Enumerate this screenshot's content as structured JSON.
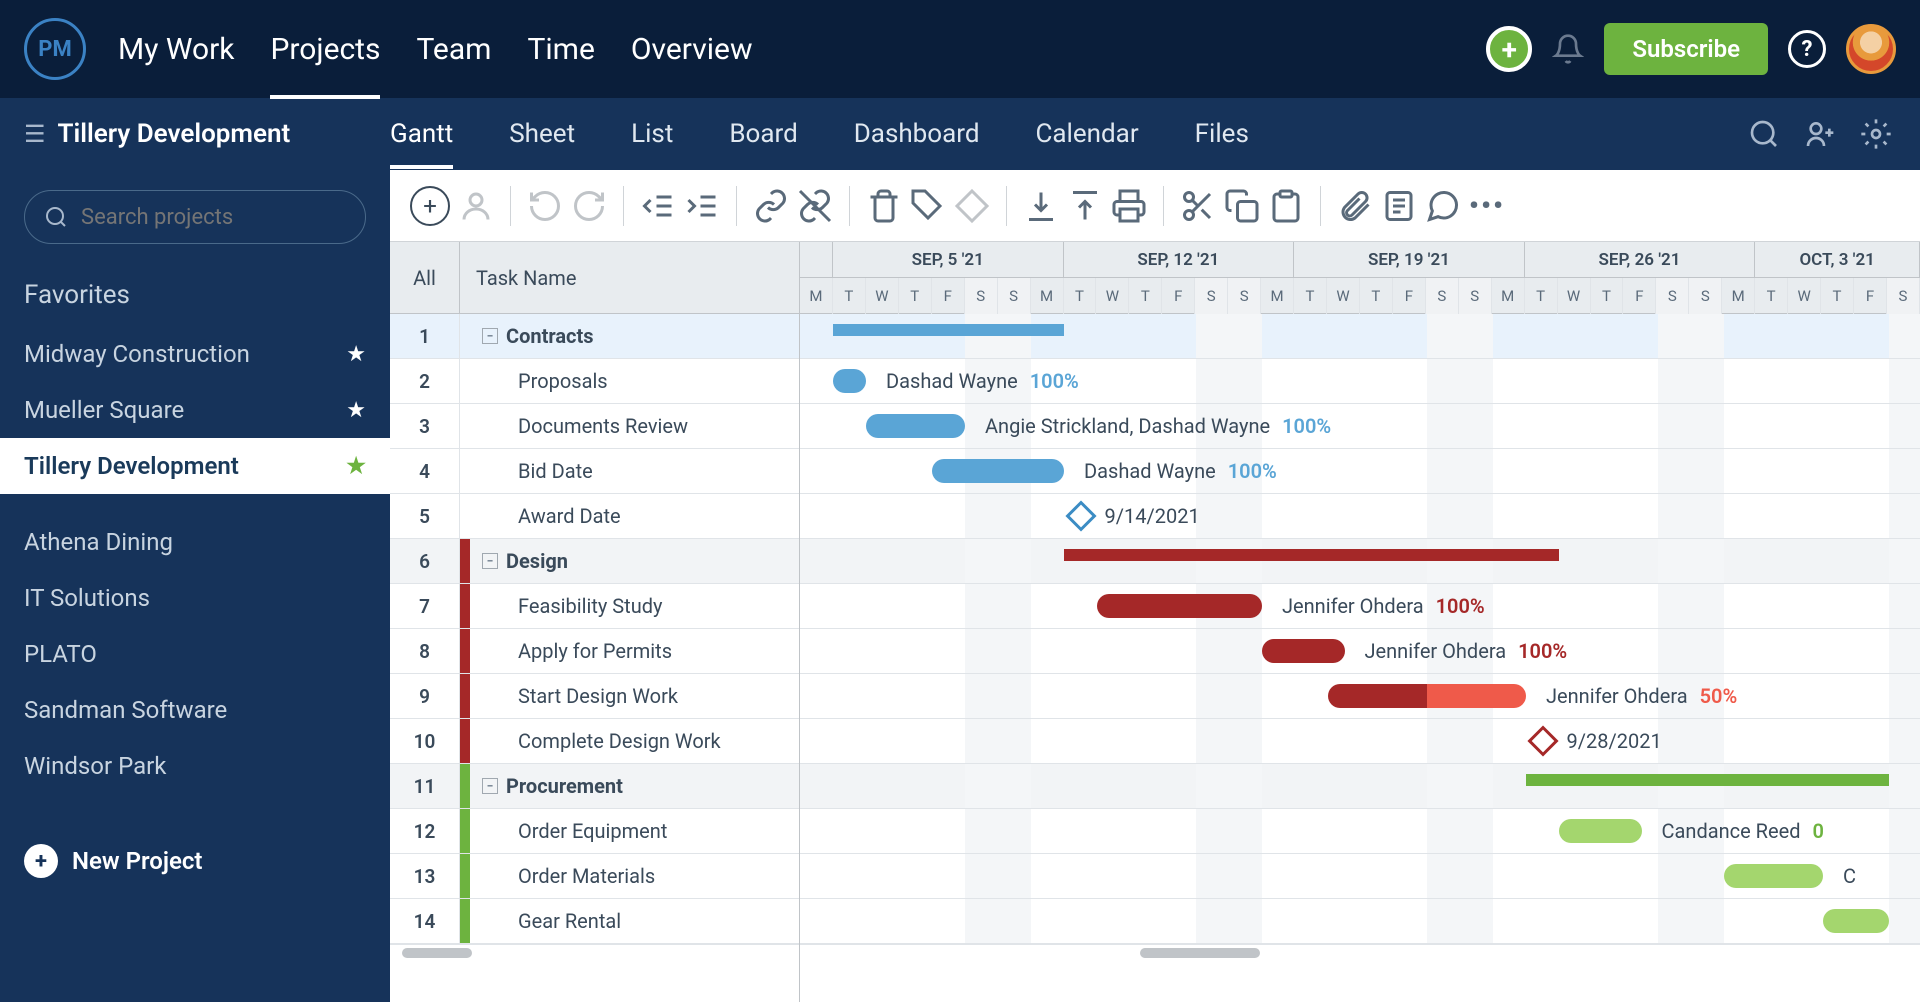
{
  "logo": "PM",
  "nav": [
    "My Work",
    "Projects",
    "Team",
    "Time",
    "Overview"
  ],
  "nav_active": 1,
  "subscribe": "Subscribe",
  "project_title": "Tillery Development",
  "views": [
    "Gantt",
    "Sheet",
    "List",
    "Board",
    "Dashboard",
    "Calendar",
    "Files"
  ],
  "view_active": 0,
  "search_placeholder": "Search projects",
  "favorites_label": "Favorites",
  "fav_projects": [
    {
      "name": "Midway Construction",
      "star": "white"
    },
    {
      "name": "Mueller Square",
      "star": "white"
    },
    {
      "name": "Tillery Development",
      "star": "green",
      "active": true
    }
  ],
  "other_projects": [
    "Athena Dining",
    "IT Solutions",
    "PLATO",
    "Sandman Software",
    "Windsor Park"
  ],
  "new_project": "New Project",
  "th_all": "All",
  "th_name": "Task Name",
  "day_width": 33,
  "months": [
    {
      "label": "SEP, 5 '21",
      "days": 7
    },
    {
      "label": "SEP, 12 '21",
      "days": 7
    },
    {
      "label": "SEP, 19 '21",
      "days": 7
    },
    {
      "label": "SEP, 26 '21",
      "days": 7
    },
    {
      "label": "OCT, 3 '21",
      "days": 5
    }
  ],
  "day_letters": [
    "M",
    "T",
    "W",
    "T",
    "F",
    "S",
    "S"
  ],
  "weekend_cols": [
    4,
    5,
    11,
    12,
    18,
    19,
    25,
    26,
    32
  ],
  "colors": {
    "blue": "#5aa5d6",
    "blue_dark": "#3b8cc4",
    "red": "#a52828",
    "red_light": "#ef5a4a",
    "green": "#6db33f",
    "green_light": "#a4d66e"
  },
  "tasks": [
    {
      "num": 1,
      "name": "Contracts",
      "group": true,
      "color": "",
      "selected": true,
      "bar": {
        "type": "group",
        "start": 1,
        "end": 8,
        "color": "#5aa5d6"
      }
    },
    {
      "num": 2,
      "name": "Proposals",
      "child": true,
      "color": "",
      "bar": {
        "type": "task",
        "start": 1,
        "end": 2,
        "color": "#5aa5d6",
        "label": "Dashad Wayne",
        "pct": "100%",
        "pctColor": "#5aa5d6"
      }
    },
    {
      "num": 3,
      "name": "Documents Review",
      "child": true,
      "color": "",
      "bar": {
        "type": "task",
        "start": 2,
        "end": 5,
        "color": "#5aa5d6",
        "label": "Angie Strickland, Dashad Wayne",
        "pct": "100%",
        "pctColor": "#5aa5d6"
      }
    },
    {
      "num": 4,
      "name": "Bid Date",
      "child": true,
      "color": "",
      "bar": {
        "type": "task",
        "start": 4,
        "end": 8,
        "color": "#5aa5d6",
        "label": "Dashad Wayne",
        "pct": "100%",
        "pctColor": "#5aa5d6"
      }
    },
    {
      "num": 5,
      "name": "Award Date",
      "child": true,
      "color": "",
      "bar": {
        "type": "milestone",
        "at": 8.5,
        "color": "#3b8cc4",
        "label": "9/14/2021"
      }
    },
    {
      "num": 6,
      "name": "Design",
      "group": true,
      "color": "#a52828",
      "bar": {
        "type": "group",
        "start": 8,
        "end": 23,
        "color": "#a52828"
      }
    },
    {
      "num": 7,
      "name": "Feasibility Study",
      "child": true,
      "color": "#a52828",
      "bar": {
        "type": "task",
        "start": 9,
        "end": 14,
        "color": "#a52828",
        "label": "Jennifer Ohdera",
        "pct": "100%",
        "pctColor": "#a52828"
      }
    },
    {
      "num": 8,
      "name": "Apply for Permits",
      "child": true,
      "color": "#a52828",
      "bar": {
        "type": "task",
        "start": 14,
        "end": 16.5,
        "color": "#a52828",
        "label": "Jennifer Ohdera",
        "pct": "100%",
        "pctColor": "#a52828"
      }
    },
    {
      "num": 9,
      "name": "Start Design Work",
      "child": true,
      "color": "#a52828",
      "bar": {
        "type": "task",
        "start": 16,
        "end": 22,
        "color": "#a52828",
        "partial": 19,
        "partialColor": "#ef5a4a",
        "label": "Jennifer Ohdera",
        "pct": "50%",
        "pctColor": "#ef5a4a"
      }
    },
    {
      "num": 10,
      "name": "Complete Design Work",
      "child": true,
      "color": "#a52828",
      "bar": {
        "type": "milestone",
        "at": 22.5,
        "color": "#a52828",
        "label": "9/28/2021"
      }
    },
    {
      "num": 11,
      "name": "Procurement",
      "group": true,
      "color": "#6db33f",
      "bar": {
        "type": "group",
        "start": 22,
        "end": 33,
        "color": "#6db33f"
      }
    },
    {
      "num": 12,
      "name": "Order Equipment",
      "child": true,
      "color": "#6db33f",
      "bar": {
        "type": "task",
        "start": 23,
        "end": 25.5,
        "color": "#a4d66e",
        "label": "Candance Reed",
        "pct": "0",
        "pctColor": "#6db33f"
      }
    },
    {
      "num": 13,
      "name": "Order Materials",
      "child": true,
      "color": "#6db33f",
      "bar": {
        "type": "task",
        "start": 28,
        "end": 31,
        "color": "#a4d66e",
        "label": "C",
        "pct": "",
        "pctColor": "#6db33f"
      }
    },
    {
      "num": 14,
      "name": "Gear Rental",
      "child": true,
      "color": "#6db33f",
      "bar": {
        "type": "task",
        "start": 31,
        "end": 33,
        "color": "#a4d66e"
      }
    }
  ]
}
